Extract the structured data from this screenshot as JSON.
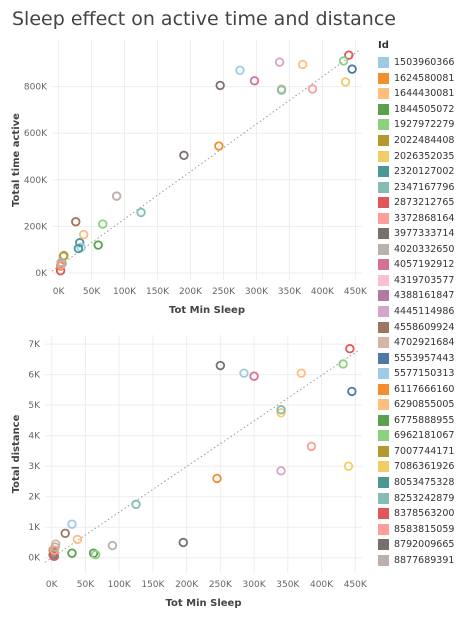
{
  "title": "Sleep effect on active time and distance",
  "legend_title": "Id",
  "ids": [
    {
      "id": "1503960366",
      "color": "#9ecae1"
    },
    {
      "id": "1624580081",
      "color": "#f28e2b"
    },
    {
      "id": "1644430081",
      "color": "#ffbe7d"
    },
    {
      "id": "1844505072",
      "color": "#59a14f"
    },
    {
      "id": "1927972279",
      "color": "#8cd17d"
    },
    {
      "id": "2022484408",
      "color": "#b6992d"
    },
    {
      "id": "2026352035",
      "color": "#f1ce63"
    },
    {
      "id": "2320127002",
      "color": "#499894"
    },
    {
      "id": "2347167796",
      "color": "#86bcb6"
    },
    {
      "id": "2873212765",
      "color": "#e15759"
    },
    {
      "id": "3372868164",
      "color": "#ff9d9a"
    },
    {
      "id": "3977333714",
      "color": "#79706e"
    },
    {
      "id": "4020332650",
      "color": "#bab0ac"
    },
    {
      "id": "4057192912",
      "color": "#d37295"
    },
    {
      "id": "4319703577",
      "color": "#fabfd2"
    },
    {
      "id": "4388161847",
      "color": "#b07aa1"
    },
    {
      "id": "4445114986",
      "color": "#d4a6c8"
    },
    {
      "id": "4558609924",
      "color": "#9d7660"
    },
    {
      "id": "4702921684",
      "color": "#d7b5a6"
    },
    {
      "id": "5553957443",
      "color": "#4e79a7"
    },
    {
      "id": "5577150313",
      "color": "#a0cbe8"
    },
    {
      "id": "6117666160",
      "color": "#f28e2b"
    },
    {
      "id": "6290855005",
      "color": "#ffbe7d"
    },
    {
      "id": "6775888955",
      "color": "#59a14f"
    },
    {
      "id": "6962181067",
      "color": "#8cd17d"
    },
    {
      "id": "7007744171",
      "color": "#b6992d"
    },
    {
      "id": "7086361926",
      "color": "#f1ce63"
    },
    {
      "id": "8053475328",
      "color": "#499894"
    },
    {
      "id": "8253242879",
      "color": "#86bcb6"
    },
    {
      "id": "8378563200",
      "color": "#e15759"
    },
    {
      "id": "8583815059",
      "color": "#ff9d9a"
    },
    {
      "id": "8792009665",
      "color": "#79706e"
    },
    {
      "id": "8877689391",
      "color": "#bab0ac"
    }
  ],
  "chart_data": [
    {
      "type": "scatter",
      "title": "",
      "xlabel": "Tot Min Sleep",
      "ylabel": "Total time active",
      "xlim": [
        -10000,
        460000
      ],
      "ylim": [
        -30000,
        1000000
      ],
      "xticks": [
        0,
        50000,
        100000,
        150000,
        200000,
        250000,
        300000,
        350000,
        400000,
        450000
      ],
      "xtick_labels": [
        "0K",
        "50K",
        "100K",
        "150K",
        "200K",
        "250K",
        "300K",
        "350K",
        "400K",
        "450K"
      ],
      "yticks": [
        0,
        200000,
        400000,
        600000,
        800000
      ],
      "ytick_labels": [
        "0K",
        "200K",
        "400K",
        "600K",
        "800K"
      ],
      "trend_line": [
        [
          -10000,
          8000
        ],
        [
          455000,
          955000
        ]
      ],
      "grid": true,
      "points": [
        {
          "x": 275000,
          "y": 870000,
          "color": "#9ecae1"
        },
        {
          "x": 3000,
          "y": 30000,
          "color": "#f28e2b"
        },
        {
          "x": 370000,
          "y": 895000,
          "color": "#ffbe7d"
        },
        {
          "x": 60000,
          "y": 120000,
          "color": "#59a14f"
        },
        {
          "x": 67000,
          "y": 210000,
          "color": "#8cd17d"
        },
        {
          "x": 4000,
          "y": 45000,
          "color": "#b6992d"
        },
        {
          "x": 435000,
          "y": 820000,
          "color": "#f1ce63"
        },
        {
          "x": 32000,
          "y": 130000,
          "color": "#499894"
        },
        {
          "x": 125000,
          "y": 260000,
          "color": "#86bcb6"
        },
        {
          "x": 440000,
          "y": 935000,
          "color": "#e15759"
        },
        {
          "x": 385000,
          "y": 790000,
          "color": "#ff9d9a"
        },
        {
          "x": 245000,
          "y": 805000,
          "color": "#79706e"
        },
        {
          "x": 88000,
          "y": 330000,
          "color": "#bab0ac"
        },
        {
          "x": 297000,
          "y": 825000,
          "color": "#d37295"
        },
        {
          "x": 3000,
          "y": 10000,
          "color": "#fabfd2"
        },
        {
          "x": 4000,
          "y": 40000,
          "color": "#b07aa1"
        },
        {
          "x": 335000,
          "y": 905000,
          "color": "#d4a6c8"
        },
        {
          "x": 26000,
          "y": 220000,
          "color": "#9d7660"
        },
        {
          "x": 7000,
          "y": 70000,
          "color": "#d7b5a6"
        },
        {
          "x": 445000,
          "y": 875000,
          "color": "#4e79a7"
        },
        {
          "x": 34000,
          "y": 110000,
          "color": "#a0cbe8"
        },
        {
          "x": 243000,
          "y": 545000,
          "color": "#f28e2b"
        },
        {
          "x": 38000,
          "y": 165000,
          "color": "#ffbe7d"
        },
        {
          "x": 5000,
          "y": 40000,
          "color": "#59a14f"
        },
        {
          "x": 432000,
          "y": 910000,
          "color": "#8cd17d"
        },
        {
          "x": 8000,
          "y": 75000,
          "color": "#b6992d"
        },
        {
          "x": 338000,
          "y": 790000,
          "color": "#f1ce63"
        },
        {
          "x": 30000,
          "y": 105000,
          "color": "#499894"
        },
        {
          "x": 338000,
          "y": 785000,
          "color": "#86bcb6"
        },
        {
          "x": 3000,
          "y": 10000,
          "color": "#e15759"
        },
        {
          "x": 4000,
          "y": 35000,
          "color": "#ff9d9a"
        },
        {
          "x": 190000,
          "y": 505000,
          "color": "#79706e"
        },
        {
          "x": 4000,
          "y": 45000,
          "color": "#bab0ac"
        }
      ]
    },
    {
      "type": "scatter",
      "title": "",
      "xlabel": "Tot Min Sleep",
      "ylabel": "Total distance",
      "xlim": [
        -10000,
        460000
      ],
      "ylim": [
        -500,
        7300
      ],
      "xticks": [
        0,
        50000,
        100000,
        150000,
        200000,
        250000,
        300000,
        350000,
        400000,
        450000
      ],
      "xtick_labels": [
        "0K",
        "50K",
        "100K",
        "150K",
        "200K",
        "250K",
        "300K",
        "350K",
        "400K",
        "450K"
      ],
      "yticks": [
        0,
        1000,
        2000,
        3000,
        4000,
        5000,
        6000,
        7000
      ],
      "ytick_labels": [
        "0K",
        "1K",
        "2K",
        "3K",
        "4K",
        "5K",
        "6K",
        "7K"
      ],
      "trend_line": [
        [
          -10000,
          -150
        ],
        [
          455000,
          6800
        ]
      ],
      "grid": true,
      "points": [
        {
          "x": 285000,
          "y": 6050,
          "color": "#9ecae1"
        },
        {
          "x": 2000,
          "y": 250,
          "color": "#f28e2b"
        },
        {
          "x": 370000,
          "y": 6050,
          "color": "#ffbe7d"
        },
        {
          "x": 62000,
          "y": 150,
          "color": "#59a14f"
        },
        {
          "x": 65000,
          "y": 100,
          "color": "#8cd17d"
        },
        {
          "x": 3000,
          "y": 150,
          "color": "#b6992d"
        },
        {
          "x": 440000,
          "y": 3000,
          "color": "#f1ce63"
        },
        {
          "x": 4000,
          "y": 50,
          "color": "#499894"
        },
        {
          "x": 125000,
          "y": 1750,
          "color": "#86bcb6"
        },
        {
          "x": 442000,
          "y": 6850,
          "color": "#e15759"
        },
        {
          "x": 385000,
          "y": 3650,
          "color": "#ff9d9a"
        },
        {
          "x": 250000,
          "y": 6300,
          "color": "#79706e"
        },
        {
          "x": 90000,
          "y": 400,
          "color": "#bab0ac"
        },
        {
          "x": 300000,
          "y": 5950,
          "color": "#d37295"
        },
        {
          "x": 3000,
          "y": 100,
          "color": "#fabfd2"
        },
        {
          "x": 3000,
          "y": 150,
          "color": "#b07aa1"
        },
        {
          "x": 340000,
          "y": 2850,
          "color": "#d4a6c8"
        },
        {
          "x": 20000,
          "y": 800,
          "color": "#9d7660"
        },
        {
          "x": 6000,
          "y": 450,
          "color": "#d7b5a6"
        },
        {
          "x": 445000,
          "y": 5450,
          "color": "#4e79a7"
        },
        {
          "x": 30000,
          "y": 1100,
          "color": "#a0cbe8"
        },
        {
          "x": 245000,
          "y": 2600,
          "color": "#f28e2b"
        },
        {
          "x": 38000,
          "y": 600,
          "color": "#ffbe7d"
        },
        {
          "x": 30000,
          "y": 150,
          "color": "#59a14f"
        },
        {
          "x": 432000,
          "y": 6350,
          "color": "#8cd17d"
        },
        {
          "x": 3000,
          "y": 200,
          "color": "#b6992d"
        },
        {
          "x": 340000,
          "y": 4750,
          "color": "#f1ce63"
        },
        {
          "x": 2000,
          "y": 100,
          "color": "#499894"
        },
        {
          "x": 340000,
          "y": 4850,
          "color": "#86bcb6"
        },
        {
          "x": 3000,
          "y": 50,
          "color": "#e15759"
        },
        {
          "x": 4000,
          "y": 250,
          "color": "#ff9d9a"
        },
        {
          "x": 195000,
          "y": 500,
          "color": "#79706e"
        },
        {
          "x": 5000,
          "y": 350,
          "color": "#bab0ac"
        }
      ]
    }
  ]
}
